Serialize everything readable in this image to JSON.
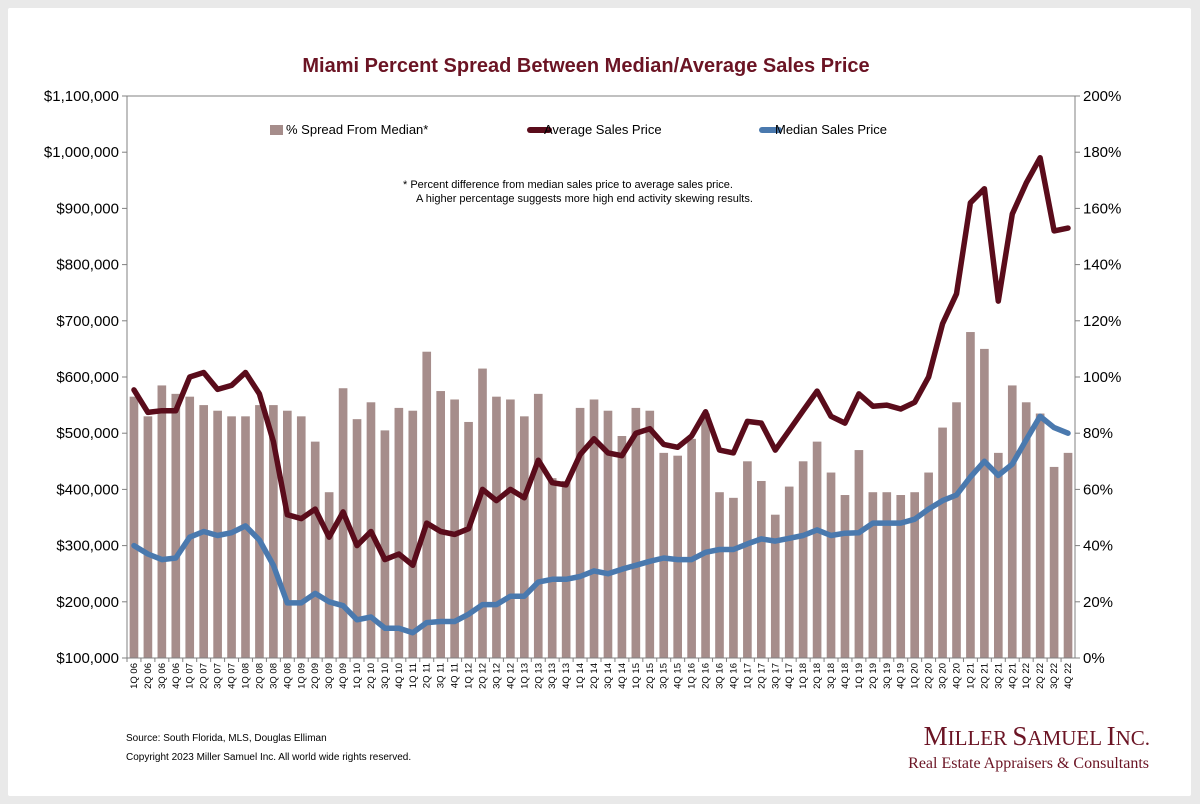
{
  "chart_data": {
    "type": "bar+line",
    "title": "Miami Percent Spread Between Median/Average Sales Price",
    "categories": [
      "1Q 06",
      "2Q 06",
      "3Q 06",
      "4Q 06",
      "1Q 07",
      "2Q 07",
      "3Q 07",
      "4Q 07",
      "1Q 08",
      "2Q 08",
      "3Q 08",
      "4Q 08",
      "1Q 09",
      "2Q 09",
      "3Q 09",
      "4Q 09",
      "1Q 10",
      "2Q 10",
      "3Q 10",
      "4Q 10",
      "1Q 11",
      "2Q 11",
      "3Q 11",
      "4Q 11",
      "1Q 12",
      "2Q 12",
      "3Q 12",
      "4Q 12",
      "1Q 13",
      "2Q 13",
      "3Q 13",
      "4Q 13",
      "1Q 14",
      "2Q 14",
      "3Q 14",
      "4Q 14",
      "1Q 15",
      "2Q 15",
      "3Q 15",
      "4Q 15",
      "1Q 16",
      "2Q 16",
      "3Q 16",
      "4Q 16",
      "1Q 17",
      "2Q 17",
      "3Q 17",
      "4Q 17",
      "1Q 18",
      "2Q 18",
      "3Q 18",
      "4Q 18",
      "1Q 19",
      "2Q 19",
      "3Q 19",
      "4Q 19",
      "1Q 20",
      "2Q 20",
      "3Q 20",
      "4Q 20",
      "1Q 21",
      "2Q 21",
      "3Q 21",
      "4Q 21",
      "1Q 22",
      "2Q 22",
      "3Q 22",
      "4Q 22"
    ],
    "y_left": {
      "ylim": [
        100000,
        1100000
      ],
      "ticks": [
        "$100,000",
        "$200,000",
        "$300,000",
        "$400,000",
        "$500,000",
        "$600,000",
        "$700,000",
        "$800,000",
        "$900,000",
        "$1,000,000",
        "$1,100,000"
      ]
    },
    "y_right": {
      "ylim": [
        0,
        200
      ],
      "ticks": [
        "0%",
        "20%",
        "40%",
        "60%",
        "80%",
        "100%",
        "120%",
        "140%",
        "160%",
        "180%",
        "200%"
      ]
    },
    "series": [
      {
        "name": "% Spread From Median*",
        "type": "bar",
        "axis": "right",
        "color": "#a68d8b",
        "values": [
          93,
          86,
          97,
          94,
          93,
          90,
          88,
          86,
          86,
          90,
          90,
          88,
          86,
          77,
          59,
          96,
          85,
          91,
          81,
          89,
          88,
          109,
          95,
          92,
          84,
          103,
          93,
          92,
          86,
          94,
          64,
          63,
          89,
          92,
          88,
          79,
          89,
          88,
          73,
          72,
          78,
          87,
          59,
          57,
          70,
          63,
          51,
          61,
          70,
          77,
          66,
          58,
          74,
          59,
          59,
          58,
          59,
          66,
          82,
          91,
          116,
          110,
          73,
          97,
          91,
          87,
          68,
          73
        ]
      },
      {
        "name": "Average Sales Price",
        "type": "line",
        "axis": "left",
        "color": "#5a0c1b",
        "values": [
          577000,
          537000,
          540000,
          540000,
          600000,
          608000,
          578000,
          585000,
          608000,
          570000,
          485000,
          355000,
          348000,
          365000,
          315000,
          360000,
          300000,
          325000,
          275000,
          285000,
          265000,
          340000,
          325000,
          320000,
          330000,
          400000,
          380000,
          400000,
          385000,
          452000,
          412000,
          408000,
          462000,
          490000,
          465000,
          460000,
          500000,
          508000,
          480000,
          475000,
          495000,
          538000,
          470000,
          465000,
          521000,
          518000,
          470000,
          505000,
          540000,
          575000,
          530000,
          518000,
          570000,
          548000,
          550000,
          543000,
          555000,
          600000,
          695000,
          748000,
          910000,
          935000,
          735000,
          890000,
          945000,
          990000,
          860000,
          865000
        ]
      },
      {
        "name": "Median Sales Price",
        "type": "line",
        "axis": "left",
        "color": "#4a79ae",
        "values": [
          300000,
          285000,
          275000,
          278000,
          315000,
          325000,
          318000,
          323000,
          335000,
          310000,
          265000,
          198000,
          198000,
          215000,
          200000,
          193000,
          168000,
          173000,
          153000,
          153000,
          145000,
          163000,
          165000,
          165000,
          178000,
          195000,
          195000,
          210000,
          210000,
          235000,
          240000,
          240000,
          245000,
          255000,
          250000,
          258000,
          265000,
          272000,
          278000,
          275000,
          275000,
          288000,
          293000,
          293000,
          303000,
          312000,
          308000,
          313000,
          318000,
          328000,
          318000,
          322000,
          323000,
          340000,
          340000,
          340000,
          347000,
          365000,
          380000,
          390000,
          422000,
          450000,
          425000,
          445000,
          488000,
          530000,
          510000,
          500000
        ]
      }
    ],
    "legend": [
      "% Spread From Median*",
      "Average Sales Price",
      "Median Sales Price"
    ],
    "legend_position": "top",
    "annotation": [
      "*  Percent difference from median sales price to average sales price.",
      "A higher percentage suggests more high end activity skewing results."
    ],
    "grid": false
  },
  "footer": {
    "source": "Source: South Florida, MLS, Douglas Elliman",
    "copyright": "Copyright 2023 Miller Samuel Inc.  All world wide rights reserved."
  },
  "logo": {
    "name": "Miller Samuel Inc.",
    "tagline": "Real Estate Appraisers & Consultants"
  },
  "colors": {
    "title": "#6b1424",
    "average_line": "#5a0c1b",
    "median_line": "#4a79ae",
    "bars": "#a68d8b",
    "logo": "#6b1424"
  }
}
